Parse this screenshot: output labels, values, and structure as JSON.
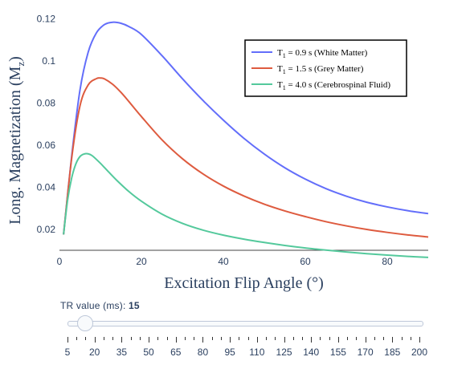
{
  "chart_data": {
    "type": "line",
    "xlabel": "Excitation Flip Angle (°)",
    "ylabel_main": "Long. Magnetization (M",
    "ylabel_sub": "z",
    "ylabel_close": ")",
    "xlim": [
      0,
      90
    ],
    "ylim": [
      0.01,
      0.122
    ],
    "xticks": [
      0,
      20,
      40,
      60,
      80
    ],
    "xtick_labels": [
      "0",
      "20",
      "40",
      "60",
      "80"
    ],
    "yticks": [
      0.02,
      0.04,
      0.06,
      0.08,
      0.1,
      0.12
    ],
    "ytick_labels": [
      "0.02",
      "0.04",
      "0.06",
      "0.08",
      "0.1",
      "0.12"
    ],
    "grid": false,
    "legend_position": "top-right",
    "series": [
      {
        "name_prefix": "T",
        "name_sub": "1",
        "name_rest": " = 0.9 s (White Matter)",
        "color": "#636efa",
        "x": [
          1,
          3,
          5,
          7,
          9,
          11,
          13,
          15,
          17,
          20,
          25,
          30,
          35,
          40,
          45,
          50,
          55,
          60,
          65,
          70,
          75,
          80,
          85,
          90
        ],
        "y": [
          0.0175,
          0.055,
          0.086,
          0.104,
          0.1132,
          0.1172,
          0.1183,
          0.1178,
          0.1162,
          0.1125,
          0.1025,
          0.0915,
          0.0812,
          0.0718,
          0.0632,
          0.0557,
          0.0492,
          0.0438,
          0.0393,
          0.0357,
          0.0328,
          0.0306,
          0.0288,
          0.0274
        ]
      },
      {
        "name_prefix": "T",
        "name_sub": "1",
        "name_rest": " = 1.5 s (Grey Matter)",
        "color": "#de5b3f",
        "x": [
          1,
          3,
          5,
          7,
          9,
          10,
          11,
          13,
          15,
          17,
          20,
          25,
          30,
          35,
          40,
          45,
          50,
          55,
          60,
          65,
          70,
          75,
          80,
          85,
          90
        ],
        "y": [
          0.0175,
          0.054,
          0.0785,
          0.0885,
          0.0915,
          0.0918,
          0.0914,
          0.0888,
          0.085,
          0.0805,
          0.0735,
          0.0625,
          0.0535,
          0.0463,
          0.0405,
          0.0358,
          0.0319,
          0.0287,
          0.026,
          0.0236,
          0.0216,
          0.0199,
          0.0185,
          0.0173,
          0.0163
        ]
      },
      {
        "name_prefix": "T",
        "name_sub": "1",
        "name_rest": " = 4.0 s (Cerebrospinal Fluid)",
        "color": "#54c99c",
        "x": [
          1,
          2,
          3,
          4,
          5,
          6,
          7,
          8,
          10,
          12,
          14,
          17,
          20,
          25,
          30,
          35,
          40,
          45,
          50,
          55,
          60,
          65,
          70,
          75,
          80,
          85,
          90
        ],
        "y": [
          0.0175,
          0.034,
          0.0445,
          0.051,
          0.0545,
          0.0557,
          0.0558,
          0.0549,
          0.0513,
          0.0472,
          0.0432,
          0.0378,
          0.0333,
          0.0272,
          0.0228,
          0.0196,
          0.0172,
          0.0153,
          0.0137,
          0.0123,
          0.0111,
          0.0101,
          0.0092,
          0.0084,
          0.0077,
          0.0071,
          0.0066
        ]
      }
    ]
  },
  "slider": {
    "label_prefix": "TR value (ms): ",
    "current_value": "15",
    "min": 5,
    "max": 200,
    "value": 15,
    "step_values": [
      5,
      10,
      15,
      20,
      25,
      30,
      35,
      40,
      45,
      50,
      55,
      60,
      65,
      70,
      75,
      80,
      85,
      90,
      95,
      100,
      105,
      110,
      115,
      120,
      125,
      130,
      135,
      140,
      145,
      150,
      155,
      160,
      165,
      170,
      175,
      180,
      185,
      190,
      195,
      200
    ],
    "labels": [
      "5",
      "20",
      "35",
      "50",
      "65",
      "80",
      "95",
      "110",
      "125",
      "140",
      "155",
      "170",
      "185",
      "200"
    ]
  }
}
